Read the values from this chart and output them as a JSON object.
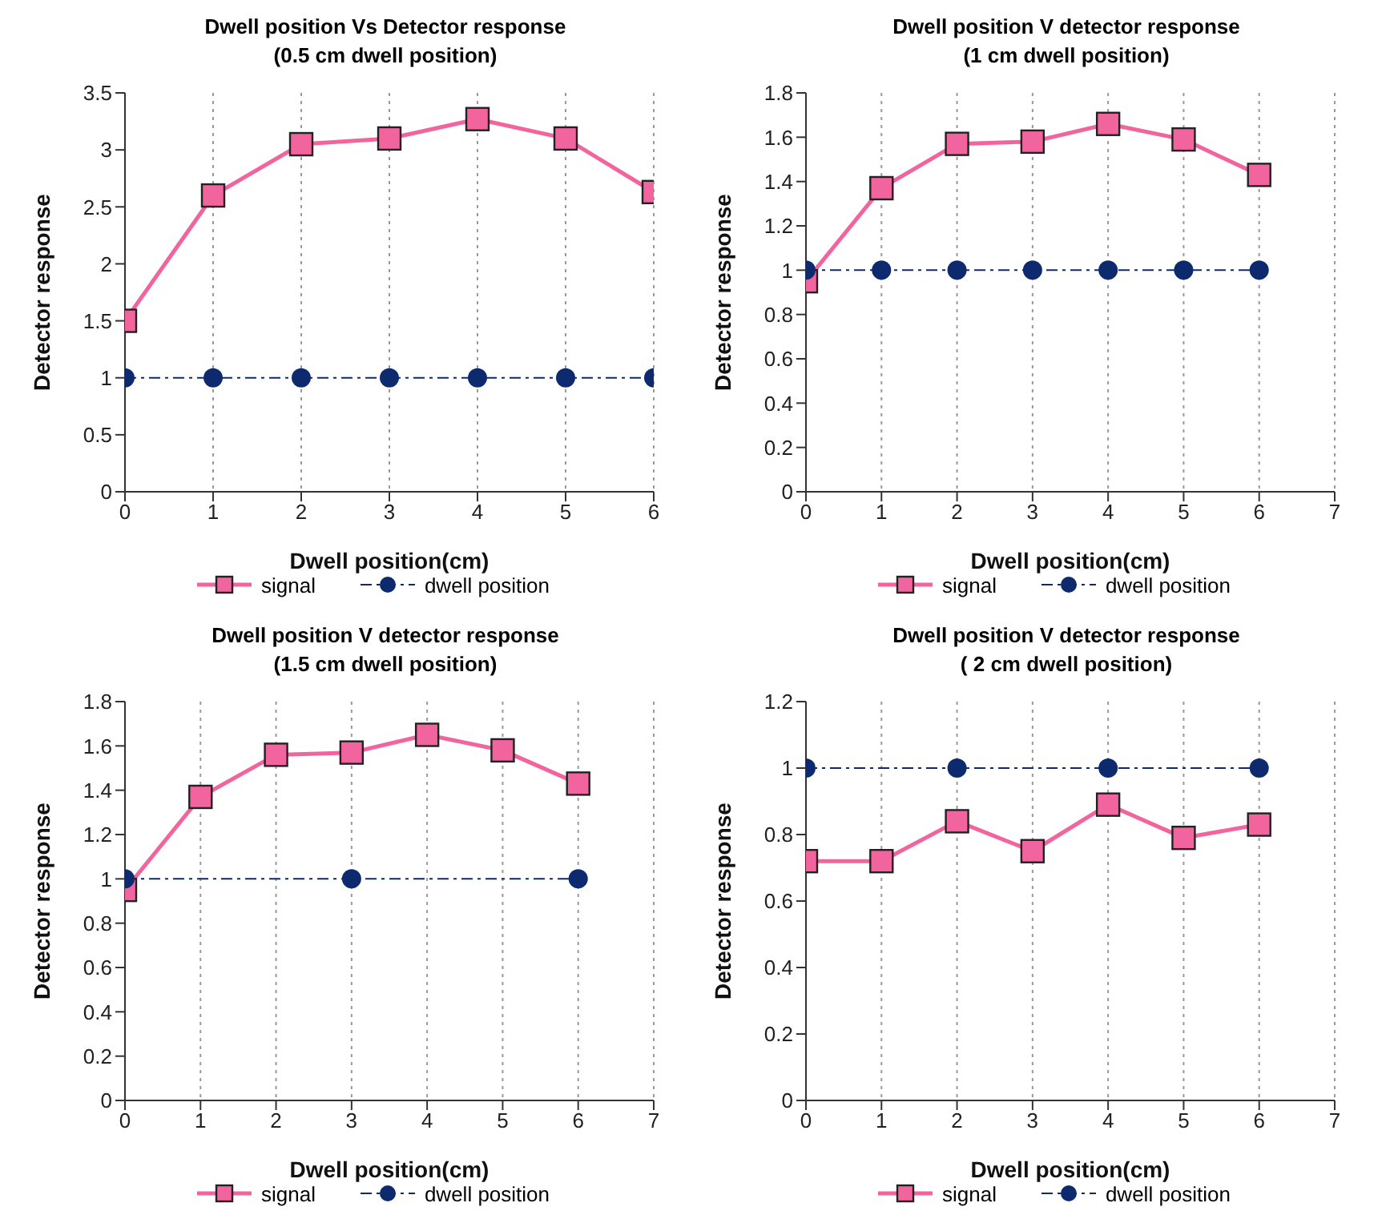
{
  "chart_data": [
    {
      "type": "line",
      "title": "Dwell position Vs Detector response",
      "subtitle": "(0.5 cm dwell position)",
      "xlabel": "Dwell position(cm)",
      "ylabel": "Detector response",
      "xlim": [
        0,
        6
      ],
      "xticks": [
        0,
        1,
        2,
        3,
        4,
        5,
        6
      ],
      "ylim": [
        0,
        3.5
      ],
      "yticks": [
        0,
        0.5,
        1,
        1.5,
        2,
        2.5,
        3,
        3.5
      ],
      "grid": "x",
      "legend": "bottom",
      "series": [
        {
          "name": "signal",
          "color": "#f2649e",
          "marker": "square",
          "line_style": "solid",
          "x": [
            0,
            1,
            2,
            3,
            4,
            5,
            6
          ],
          "values": [
            1.5,
            2.6,
            3.05,
            3.1,
            3.27,
            3.1,
            2.63
          ]
        },
        {
          "name": "dwell position",
          "color": "#0d2a6e",
          "marker": "circle",
          "line_style": "dashed",
          "x": [
            0,
            1,
            2,
            3,
            4,
            5,
            6
          ],
          "values": [
            1,
            1,
            1,
            1,
            1,
            1,
            1
          ]
        }
      ]
    },
    {
      "type": "line",
      "title": "Dwell position V detector response",
      "subtitle": "(1 cm dwell position)",
      "xlabel": "Dwell position(cm)",
      "ylabel": "Detector response",
      "xlim": [
        0,
        7
      ],
      "xticks": [
        0,
        1,
        2,
        3,
        4,
        5,
        6,
        7
      ],
      "ylim": [
        0,
        1.8
      ],
      "yticks": [
        0,
        0.2,
        0.4,
        0.6,
        0.8,
        1,
        1.2,
        1.4,
        1.6,
        1.8
      ],
      "grid": "x",
      "legend": "bottom",
      "series": [
        {
          "name": "signal",
          "color": "#f2649e",
          "marker": "square",
          "line_style": "solid",
          "x": [
            0,
            1,
            2,
            3,
            4,
            5,
            6
          ],
          "values": [
            0.95,
            1.37,
            1.57,
            1.58,
            1.66,
            1.59,
            1.43
          ]
        },
        {
          "name": "dwell position",
          "color": "#0d2a6e",
          "marker": "circle",
          "line_style": "dashed",
          "x": [
            0,
            1,
            2,
            3,
            4,
            5,
            6
          ],
          "values": [
            1,
            1,
            1,
            1,
            1,
            1,
            1
          ]
        }
      ]
    },
    {
      "type": "line",
      "title": "Dwell position V detector response",
      "subtitle": "(1.5 cm dwell position)",
      "xlabel": "Dwell position(cm)",
      "ylabel": "Detector response",
      "xlim": [
        0,
        7
      ],
      "xticks": [
        0,
        1,
        2,
        3,
        4,
        5,
        6,
        7
      ],
      "ylim": [
        0,
        1.8
      ],
      "yticks": [
        0,
        0.2,
        0.4,
        0.6,
        0.8,
        1,
        1.2,
        1.4,
        1.6,
        1.8
      ],
      "grid": "x",
      "legend": "bottom",
      "series": [
        {
          "name": "signal",
          "color": "#f2649e",
          "marker": "square",
          "line_style": "solid",
          "x": [
            0,
            1,
            2,
            3,
            4,
            5,
            6
          ],
          "values": [
            0.95,
            1.37,
            1.56,
            1.57,
            1.65,
            1.58,
            1.43
          ]
        },
        {
          "name": "dwell position",
          "color": "#0d2a6e",
          "marker": "circle",
          "line_style": "dashed",
          "x": [
            0,
            3,
            6
          ],
          "values": [
            1,
            1,
            1
          ]
        }
      ]
    },
    {
      "type": "line",
      "title": "Dwell position V detector response",
      "subtitle": "( 2 cm dwell position)",
      "xlabel": "Dwell position(cm)",
      "ylabel": "Detector response",
      "xlim": [
        0,
        7
      ],
      "xticks": [
        0,
        1,
        2,
        3,
        4,
        5,
        6,
        7
      ],
      "ylim": [
        0,
        1.2
      ],
      "yticks": [
        0,
        0.2,
        0.4,
        0.6,
        0.8,
        1,
        1.2
      ],
      "grid": "x",
      "legend": "bottom",
      "series": [
        {
          "name": "signal",
          "color": "#f2649e",
          "marker": "square",
          "line_style": "solid",
          "x": [
            0,
            1,
            2,
            3,
            4,
            5,
            6
          ],
          "values": [
            0.72,
            0.72,
            0.84,
            0.75,
            0.89,
            0.79,
            0.83
          ]
        },
        {
          "name": "dwell position",
          "color": "#0d2a6e",
          "marker": "circle",
          "line_style": "dashed",
          "x": [
            0,
            2,
            4,
            6
          ],
          "values": [
            1,
            1,
            1,
            1
          ]
        }
      ]
    }
  ]
}
